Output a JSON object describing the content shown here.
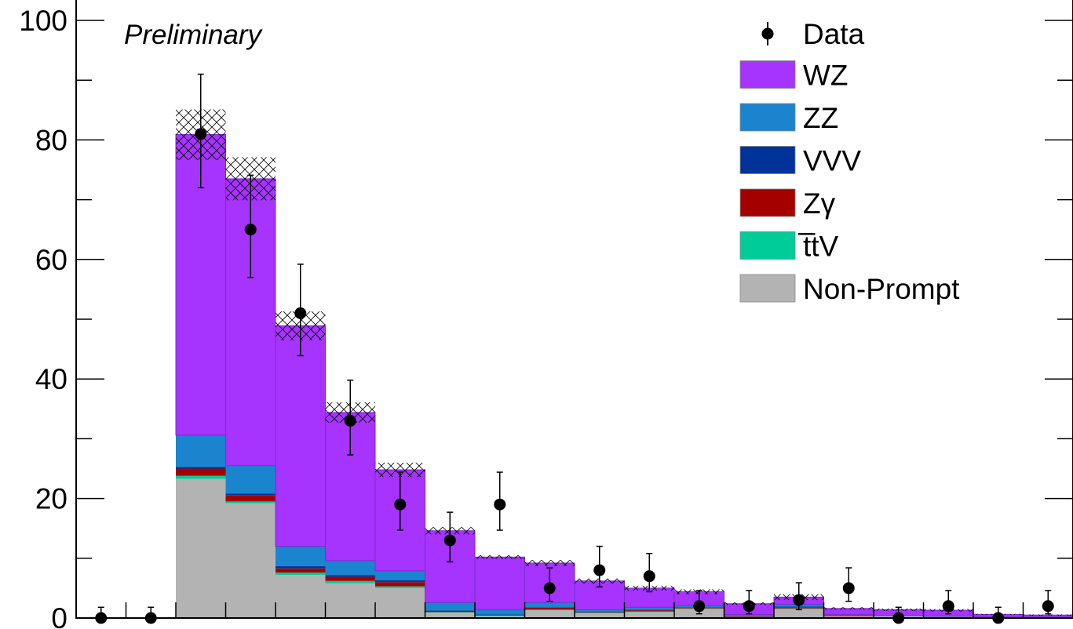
{
  "chart_data": {
    "type": "bar",
    "stacked": true,
    "annotation": "Preliminary",
    "title": "",
    "xlabel": "",
    "ylabel": "",
    "ylim": [
      0,
      100
    ],
    "y_ticks": [
      "0",
      "20",
      "40",
      "60",
      "80",
      "100"
    ],
    "bins": 20,
    "legend_position": "top-right",
    "series": [
      {
        "name": "Non-Prompt",
        "color": "#b3b3b3",
        "values": [
          0,
          0,
          23.3,
          19.2,
          7.2,
          5.8,
          5.0,
          0.9,
          0.3,
          1.3,
          0.8,
          1.0,
          1.5,
          0.2,
          1.5,
          0.3,
          0.3,
          0.2,
          0.1,
          0.1
        ]
      },
      {
        "name": "t̅tV",
        "color": "#00cc99",
        "values": [
          0,
          0,
          0.5,
          0.3,
          0.4,
          0.4,
          0.3,
          0.1,
          0.1,
          0.1,
          0.1,
          0.1,
          0.1,
          0.0,
          0.1,
          0.0,
          0.0,
          0.0,
          0.0,
          0.0
        ]
      },
      {
        "name": "Zγ",
        "color": "#a50000",
        "values": [
          0,
          0,
          1.2,
          1.0,
          0.7,
          0.7,
          0.7,
          0.2,
          0.1,
          0.3,
          0.1,
          0.2,
          0.1,
          0.1,
          0.2,
          0.1,
          0.0,
          0.0,
          0.0,
          0.0
        ]
      },
      {
        "name": "VVV",
        "color": "#00339a",
        "values": [
          0,
          0,
          0.3,
          0.3,
          0.4,
          0.3,
          0.3,
          0.1,
          0.1,
          0.1,
          0.1,
          0.1,
          0.1,
          0.1,
          0.1,
          0.1,
          0.0,
          0.0,
          0.0,
          0.0
        ]
      },
      {
        "name": "ZZ",
        "color": "#1b84ce",
        "values": [
          0,
          0,
          5.3,
          4.7,
          3.3,
          2.4,
          1.6,
          1.3,
          0.8,
          0.8,
          0.3,
          0.4,
          0.3,
          0.2,
          0.4,
          0.1,
          0.1,
          0.1,
          0.1,
          0.1
        ]
      },
      {
        "name": "WZ",
        "color": "#a733ff",
        "values": [
          0,
          0,
          50.3,
          48.0,
          36.9,
          24.8,
          16.9,
          12.0,
          8.8,
          6.6,
          4.8,
          3.2,
          2.3,
          1.8,
          1.2,
          1.0,
          1.0,
          1.0,
          0.4,
          0.3
        ]
      }
    ],
    "uncertainty": [
      0,
      0,
      4.2,
      3.6,
      2.4,
      1.7,
      1.2,
      0.6,
      0.3,
      0.5,
      0.4,
      0.4,
      0.4,
      0.2,
      0.5,
      0.2,
      0.2,
      0.2,
      0.1,
      0.1
    ],
    "data": {
      "name": "Data",
      "values": [
        0,
        0,
        81,
        65,
        51,
        33,
        19,
        13,
        19,
        5,
        8,
        7,
        2,
        2,
        3,
        5,
        0,
        2,
        0,
        2
      ],
      "err_up": [
        1.8,
        1.8,
        10.0,
        9.1,
        8.2,
        6.8,
        5.4,
        4.7,
        5.4,
        3.4,
        4.0,
        3.8,
        2.6,
        2.6,
        2.9,
        3.4,
        1.8,
        2.6,
        1.8,
        2.6
      ],
      "err_down": [
        0,
        0,
        9.0,
        8.0,
        7.1,
        5.7,
        4.3,
        3.6,
        4.3,
        2.2,
        2.8,
        2.6,
        1.3,
        1.3,
        1.6,
        2.2,
        0,
        1.3,
        0,
        1.3
      ]
    }
  }
}
